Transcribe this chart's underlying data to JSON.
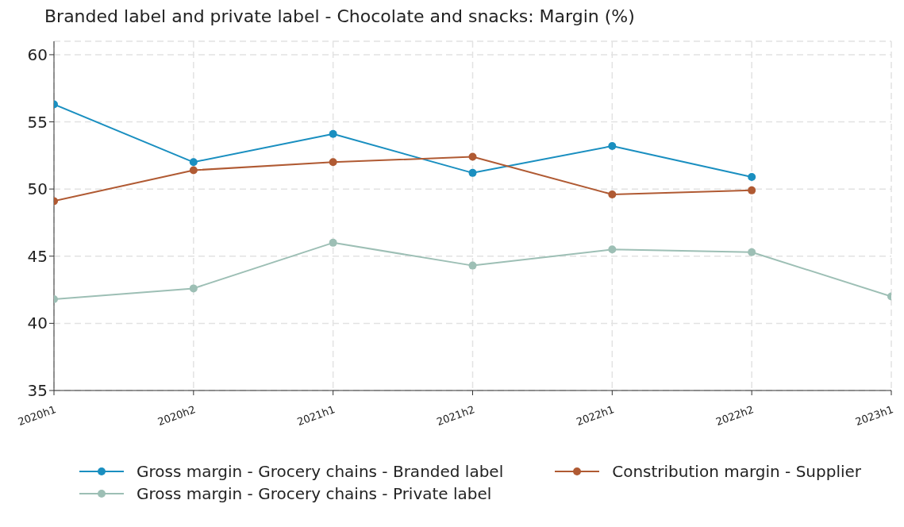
{
  "chart_data": {
    "type": "line",
    "title": "Branded label and private label - Chocolate and snacks: Margin (%)",
    "categories": [
      "2020h1",
      "2020h2",
      "2021h1",
      "2021h2",
      "2022h1",
      "2022h2",
      "2023h1"
    ],
    "series": [
      {
        "name": "Gross margin - Grocery chains - Branded label",
        "color": "#1a8fc0",
        "values": [
          56.3,
          52.0,
          54.1,
          51.2,
          53.2,
          50.9,
          null
        ]
      },
      {
        "name": "Constribution margin - Supplier",
        "color": "#b05a33",
        "values": [
          49.1,
          51.4,
          52.0,
          52.4,
          49.6,
          49.9,
          null
        ]
      },
      {
        "name": "Gross margin - Grocery chains - Private label",
        "color": "#9dbfb5",
        "values": [
          41.8,
          42.6,
          46.0,
          44.3,
          45.5,
          45.3,
          42.0
        ]
      }
    ],
    "ylim": [
      35,
      61
    ],
    "yticks": [
      35,
      40,
      45,
      50,
      55,
      60
    ],
    "grid": true,
    "legend": "bottom",
    "marker": "circle",
    "line_style": "solid"
  }
}
